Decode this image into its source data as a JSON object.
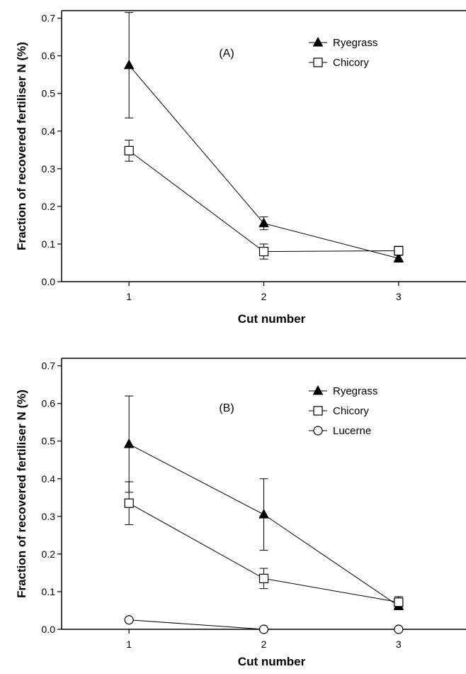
{
  "chart_data": [
    {
      "type": "line",
      "panel_label": "(A)",
      "xlabel": "Cut number",
      "ylabel": "Fraction of recovered fertiliser N (%)",
      "x": [
        1,
        2,
        3
      ],
      "x_ticks": [
        "1",
        "2",
        "3"
      ],
      "xlim": [
        0.5,
        3.5
      ],
      "y_ticks": [
        "0.0",
        "0.1",
        "0.2",
        "0.3",
        "0.4",
        "0.5",
        "0.6",
        "0.7"
      ],
      "ylim": [
        0,
        0.72
      ],
      "legend_position": "top-right",
      "series": [
        {
          "name": "Ryegrass",
          "marker": "filled-triangle",
          "color": "#000000",
          "values": [
            0.575,
            0.155,
            0.062
          ],
          "errors": [
            0.14,
            0.017,
            0.01
          ]
        },
        {
          "name": "Chicory",
          "marker": "open-square",
          "color": "#000000",
          "values": [
            0.348,
            0.08,
            0.082
          ],
          "errors": [
            0.028,
            0.02,
            0.012
          ]
        }
      ]
    },
    {
      "type": "line",
      "panel_label": "(B)",
      "xlabel": "Cut number",
      "ylabel": "Fraction of recovered fertiliser N (%)",
      "x": [
        1,
        2,
        3
      ],
      "x_ticks": [
        "1",
        "2",
        "3"
      ],
      "xlim": [
        0.5,
        3.5
      ],
      "y_ticks": [
        "0.0",
        "0.1",
        "0.2",
        "0.3",
        "0.4",
        "0.5",
        "0.6",
        "0.7"
      ],
      "ylim": [
        0,
        0.72
      ],
      "legend_position": "top-right",
      "series": [
        {
          "name": "Ryegrass",
          "marker": "filled-triangle",
          "color": "#000000",
          "values": [
            0.492,
            0.305,
            0.062
          ],
          "errors": [
            0.128,
            0.095,
            0.01
          ]
        },
        {
          "name": "Chicory",
          "marker": "open-square",
          "color": "#000000",
          "values": [
            0.335,
            0.135,
            0.072
          ],
          "errors": [
            0.057,
            0.027,
            0.015
          ]
        },
        {
          "name": "Lucerne",
          "marker": "open-circle",
          "color": "#000000",
          "values": [
            0.025,
            0.0,
            0.0
          ],
          "errors": [
            0,
            0,
            0
          ]
        }
      ]
    }
  ]
}
